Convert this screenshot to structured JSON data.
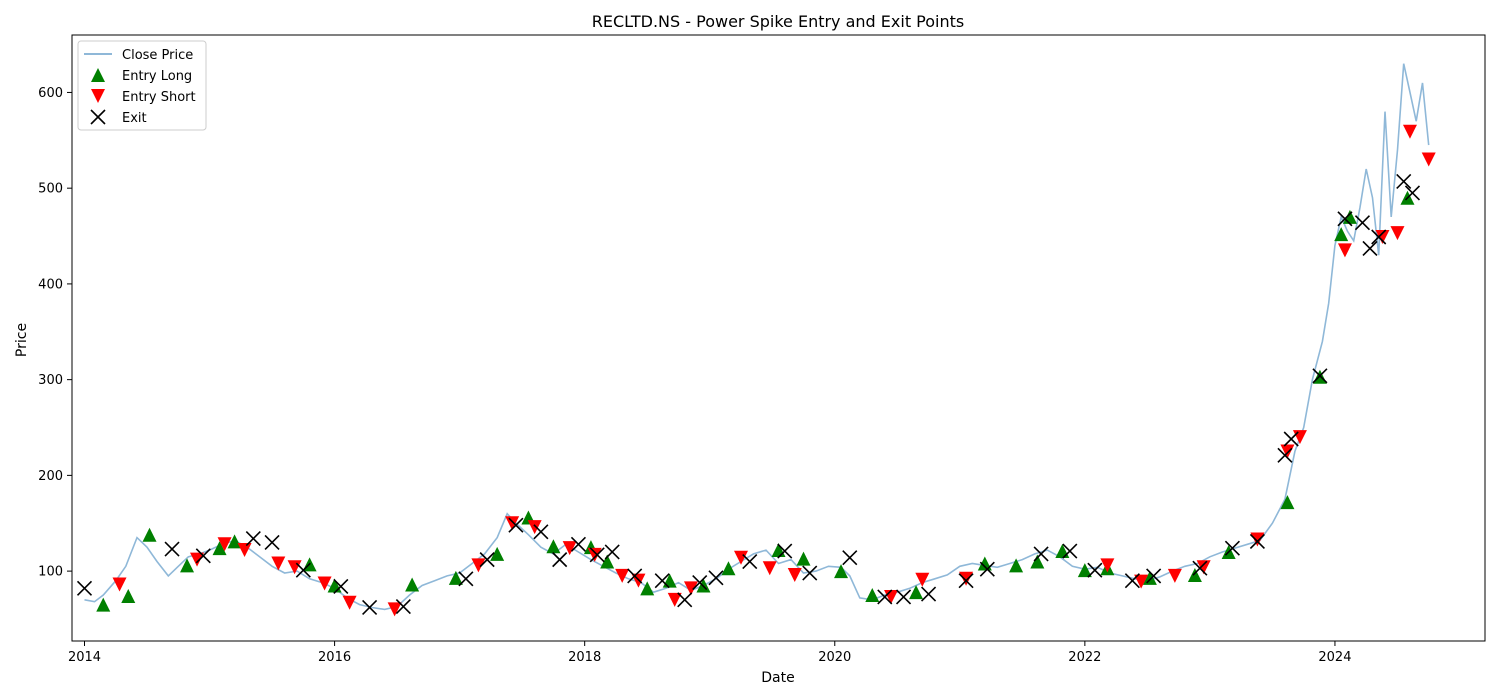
{
  "chart_data": {
    "type": "line",
    "title": "RECLTD.NS - Power Spike Entry and Exit Points",
    "xlabel": "Date",
    "ylabel": "Price",
    "xlim": [
      2013.9,
      2025.2
    ],
    "ylim": [
      27,
      660
    ],
    "x_ticks": [
      2014,
      2016,
      2018,
      2020,
      2022,
      2024
    ],
    "x_tick_labels": [
      "2014",
      "2016",
      "2018",
      "2020",
      "2022",
      "2024"
    ],
    "y_ticks": [
      100,
      200,
      300,
      400,
      500,
      600
    ],
    "y_tick_labels": [
      "100",
      "200",
      "300",
      "400",
      "500",
      "600"
    ],
    "legend": {
      "position": "top-left",
      "entries": [
        {
          "label": "Close Price",
          "kind": "line",
          "color": "#8fb8d8"
        },
        {
          "label": "Entry Long",
          "kind": "triangle-up",
          "color": "#008000"
        },
        {
          "label": "Entry Short",
          "kind": "triangle-down",
          "color": "#ff0000"
        },
        {
          "label": "Exit",
          "kind": "x",
          "color": "#000000"
        }
      ]
    },
    "series": [
      {
        "name": "Close Price",
        "color": "#8fb8d8",
        "x": [
          2014.0,
          2014.08,
          2014.15,
          2014.25,
          2014.33,
          2014.42,
          2014.5,
          2014.58,
          2014.67,
          2014.75,
          2014.83,
          2014.92,
          2015.0,
          2015.1,
          2015.2,
          2015.3,
          2015.4,
          2015.5,
          2015.6,
          2015.7,
          2015.8,
          2015.9,
          2016.0,
          2016.1,
          2016.2,
          2016.3,
          2016.4,
          2016.5,
          2016.6,
          2016.7,
          2016.8,
          2016.9,
          2017.0,
          2017.1,
          2017.2,
          2017.3,
          2017.38,
          2017.45,
          2017.55,
          2017.65,
          2017.75,
          2017.85,
          2017.95,
          2018.05,
          2018.15,
          2018.25,
          2018.35,
          2018.45,
          2018.55,
          2018.65,
          2018.75,
          2018.85,
          2018.95,
          2019.05,
          2019.15,
          2019.25,
          2019.35,
          2019.45,
          2019.55,
          2019.65,
          2019.75,
          2019.85,
          2019.95,
          2020.05,
          2020.12,
          2020.2,
          2020.3,
          2020.4,
          2020.5,
          2020.6,
          2020.7,
          2020.8,
          2020.9,
          2021.0,
          2021.1,
          2021.2,
          2021.3,
          2021.4,
          2021.5,
          2021.6,
          2021.7,
          2021.8,
          2021.9,
          2022.0,
          2022.1,
          2022.2,
          2022.3,
          2022.4,
          2022.5,
          2022.6,
          2022.7,
          2022.8,
          2022.9,
          2023.0,
          2023.1,
          2023.2,
          2023.3,
          2023.4,
          2023.5,
          2023.6,
          2023.68,
          2023.75,
          2023.82,
          2023.9,
          2023.95,
          2024.0,
          2024.05,
          2024.1,
          2024.15,
          2024.2,
          2024.25,
          2024.3,
          2024.35,
          2024.4,
          2024.45,
          2024.5,
          2024.55,
          2024.6,
          2024.65,
          2024.7,
          2024.75
        ],
        "values": [
          70,
          68,
          75,
          90,
          105,
          135,
          125,
          110,
          95,
          105,
          115,
          118,
          122,
          128,
          132,
          125,
          115,
          105,
          98,
          100,
          92,
          88,
          82,
          72,
          65,
          62,
          60,
          63,
          75,
          85,
          90,
          95,
          98,
          108,
          118,
          135,
          160,
          150,
          138,
          125,
          118,
          128,
          120,
          112,
          105,
          98,
          92,
          88,
          78,
          82,
          88,
          80,
          85,
          92,
          102,
          110,
          118,
          122,
          108,
          112,
          98,
          100,
          105,
          104,
          95,
          72,
          70,
          75,
          78,
          82,
          88,
          92,
          96,
          105,
          108,
          106,
          104,
          108,
          112,
          118,
          122,
          115,
          105,
          102,
          104,
          98,
          95,
          92,
          90,
          94,
          100,
          105,
          108,
          115,
          120,
          124,
          128,
          132,
          150,
          175,
          225,
          250,
          300,
          340,
          380,
          440,
          470,
          455,
          445,
          480,
          520,
          490,
          430,
          580,
          470,
          540,
          630,
          600,
          570,
          610,
          545
        ]
      }
    ],
    "entry_long": {
      "x": [
        2014.15,
        2014.35,
        2014.52,
        2014.82,
        2015.08,
        2015.2,
        2015.8,
        2016.0,
        2016.62,
        2016.97,
        2017.3,
        2017.55,
        2017.75,
        2018.05,
        2018.18,
        2018.5,
        2018.68,
        2018.95,
        2019.15,
        2019.55,
        2019.75,
        2020.05,
        2020.3,
        2020.65,
        2021.2,
        2021.45,
        2021.62,
        2021.82,
        2022.0,
        2022.18,
        2022.52,
        2022.88,
        2023.15,
        2023.62,
        2023.88,
        2024.05,
        2024.12,
        2024.58
      ],
      "values": [
        65,
        74,
        138,
        106,
        124,
        131,
        107,
        85,
        86,
        93,
        118,
        156,
        126,
        125,
        110,
        82,
        90,
        85,
        103,
        122,
        113,
        100,
        75,
        78,
        108,
        106,
        110,
        121,
        101,
        103,
        93,
        96,
        120,
        172,
        303,
        452,
        470,
        490
      ]
    },
    "entry_short": {
      "x": [
        2014.28,
        2014.9,
        2015.12,
        2015.28,
        2015.55,
        2015.68,
        2015.92,
        2016.12,
        2016.48,
        2017.15,
        2017.42,
        2017.6,
        2017.88,
        2018.08,
        2018.3,
        2018.43,
        2018.72,
        2018.85,
        2019.25,
        2019.48,
        2019.68,
        2020.45,
        2020.7,
        2021.05,
        2022.18,
        2022.45,
        2022.72,
        2022.95,
        2023.38,
        2023.62,
        2023.72,
        2024.08,
        2024.38,
        2024.5,
        2024.6,
        2024.75
      ],
      "values": [
        86,
        112,
        128,
        122,
        108,
        104,
        87,
        67,
        60,
        106,
        150,
        146,
        124,
        117,
        95,
        90,
        70,
        82,
        114,
        103,
        96,
        73,
        91,
        92,
        106,
        89,
        95,
        104,
        133,
        225,
        240,
        435,
        449,
        453,
        559,
        530
      ]
    },
    "exit": {
      "x": [
        2014.0,
        2014.7,
        2014.95,
        2015.35,
        2015.5,
        2015.75,
        2016.05,
        2016.28,
        2016.55,
        2017.05,
        2017.22,
        2017.45,
        2017.65,
        2017.8,
        2017.95,
        2018.1,
        2018.22,
        2018.4,
        2018.62,
        2018.8,
        2018.92,
        2019.05,
        2019.32,
        2019.6,
        2019.8,
        2020.12,
        2020.4,
        2020.55,
        2020.75,
        2021.05,
        2021.22,
        2021.65,
        2021.88,
        2022.08,
        2022.38,
        2022.55,
        2022.92,
        2023.18,
        2023.38,
        2023.6,
        2023.65,
        2023.88,
        2024.08,
        2024.22,
        2024.28,
        2024.35,
        2024.55,
        2024.62
      ],
      "values": [
        82,
        123,
        116,
        134,
        130,
        101,
        84,
        62,
        63,
        92,
        112,
        148,
        141,
        112,
        128,
        117,
        120,
        95,
        90,
        70,
        88,
        93,
        110,
        121,
        98,
        114,
        73,
        73,
        76,
        90,
        102,
        118,
        121,
        101,
        90,
        95,
        103,
        124,
        131,
        221,
        238,
        304,
        468,
        464,
        437,
        449,
        507,
        495
      ]
    }
  }
}
